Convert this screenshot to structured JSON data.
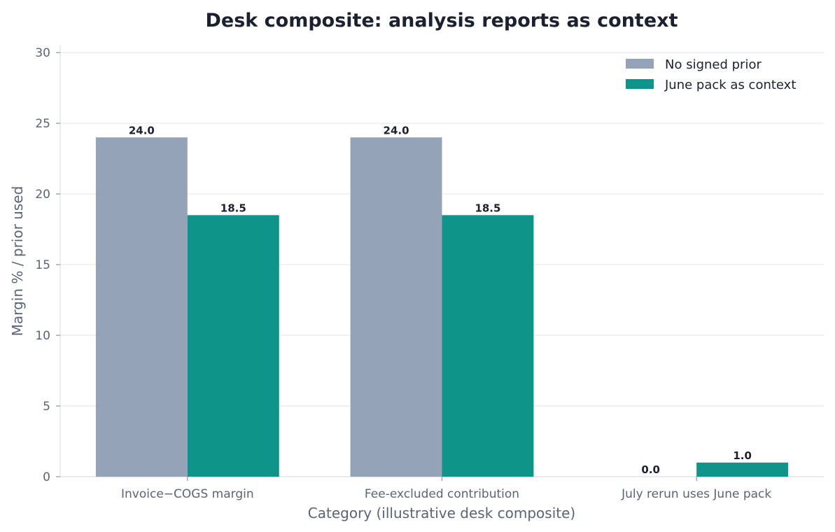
{
  "chart_data": {
    "type": "bar",
    "title": "Desk composite: analysis reports as context",
    "xlabel": "Category (illustrative desk composite)",
    "ylabel": "Margin % / prior used",
    "categories": [
      "Invoice−COGS margin",
      "Fee-excluded contribution",
      "July rerun uses June pack"
    ],
    "series": [
      {
        "name": "No signed prior",
        "values": [
          24.0,
          24.0,
          0.0
        ],
        "color": "#94a3b8"
      },
      {
        "name": "June pack as context",
        "values": [
          18.5,
          18.5,
          1.0
        ],
        "color": "#0e9488"
      }
    ],
    "ylim": [
      0,
      30.5
    ],
    "yticks": [
      0,
      5,
      10,
      15,
      20,
      25,
      30
    ],
    "grid": true,
    "legend_position": "top-right"
  }
}
